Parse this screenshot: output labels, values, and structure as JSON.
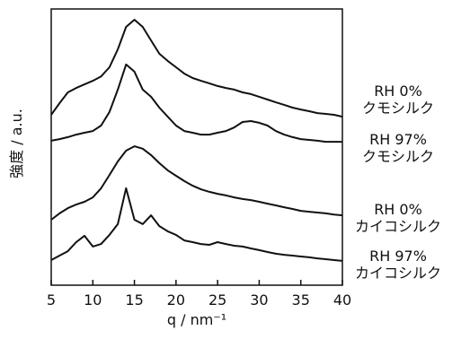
{
  "chart_data": {
    "type": "line",
    "xlabel": "q / nm⁻¹",
    "ylabel": "強度 / a.u.",
    "x": [
      5,
      6,
      7,
      8,
      9,
      10,
      11,
      12,
      13,
      14,
      15,
      16,
      17,
      18,
      19,
      20,
      21,
      22,
      23,
      24,
      25,
      26,
      27,
      28,
      29,
      30,
      31,
      32,
      33,
      34,
      35,
      36,
      37,
      38,
      39,
      40
    ],
    "series": [
      {
        "name": "RH 0%\nクモシルク",
        "color": "#111111",
        "values": [
          61.7,
          65.9,
          69.8,
          71.4,
          72.7,
          74.0,
          75.6,
          78.9,
          85.4,
          93.5,
          96.1,
          93.5,
          88.6,
          83.8,
          81.2,
          78.9,
          76.6,
          75.0,
          74.0,
          73.1,
          72.1,
          71.4,
          70.8,
          69.8,
          69.2,
          68.2,
          67.2,
          66.2,
          65.3,
          64.3,
          63.6,
          63.0,
          62.3,
          62.0,
          61.7,
          61.0
        ]
      },
      {
        "name": "RH 97%\nクモシルク",
        "color": "#111111",
        "values": [
          52.3,
          52.9,
          53.6,
          54.5,
          55.2,
          55.8,
          57.8,
          62.7,
          70.8,
          79.9,
          77.3,
          70.8,
          68.2,
          64.3,
          61.0,
          57.8,
          55.8,
          55.2,
          54.5,
          54.5,
          55.2,
          55.8,
          57.1,
          59.1,
          59.4,
          58.8,
          57.8,
          55.8,
          54.5,
          53.6,
          52.9,
          52.6,
          52.3,
          51.9,
          51.9,
          51.9
        ]
      },
      {
        "name": "RH 0%\nカイコシルク",
        "color": "#111111",
        "values": [
          23.7,
          26.0,
          27.9,
          29.2,
          30.2,
          31.8,
          35.1,
          39.9,
          44.8,
          48.7,
          50.3,
          49.4,
          47.1,
          44.2,
          41.6,
          39.6,
          37.7,
          36.0,
          34.7,
          33.8,
          33.1,
          32.5,
          31.8,
          31.2,
          30.8,
          30.2,
          29.5,
          28.9,
          28.2,
          27.6,
          26.9,
          26.6,
          26.3,
          26.0,
          25.6,
          25.3
        ]
      },
      {
        "name": "RH 97%\nカイコシルク",
        "color": "#111111",
        "values": [
          9.1,
          10.7,
          12.3,
          15.6,
          17.9,
          14.0,
          14.9,
          18.2,
          22.1,
          35.1,
          23.7,
          22.1,
          25.3,
          21.4,
          19.5,
          18.2,
          16.2,
          15.6,
          14.9,
          14.6,
          15.6,
          14.9,
          14.3,
          14.0,
          13.3,
          12.7,
          12.0,
          11.4,
          11.0,
          10.7,
          10.4,
          10.1,
          9.7,
          9.4,
          9.1,
          8.8
        ]
      }
    ],
    "xlim": [
      5,
      40
    ],
    "xticks": [
      5,
      10,
      15,
      20,
      25,
      30,
      35,
      40
    ],
    "ylim": [
      0,
      100
    ]
  }
}
